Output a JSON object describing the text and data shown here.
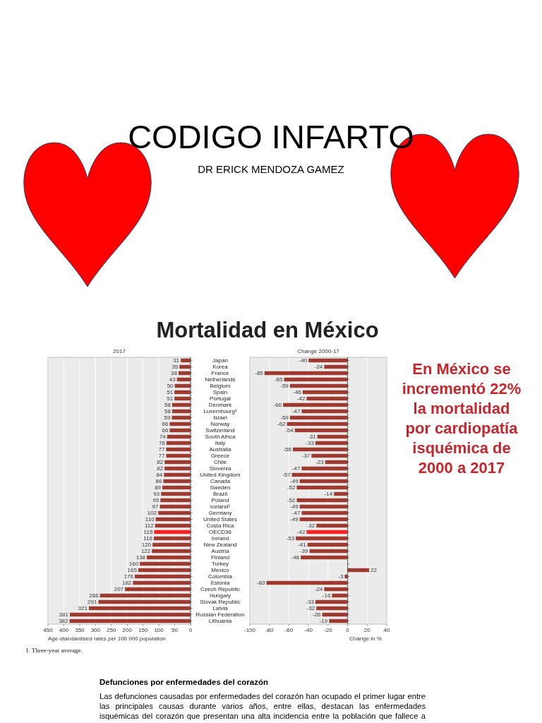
{
  "chart_data": [
    {
      "type": "other",
      "title": "CODIGO INFARTO",
      "subtitle": "DR ERICK MENDOZA GAMEZ"
    },
    {
      "type": "other",
      "title": "Mortalidad en México"
    },
    {
      "type": "bar",
      "orientation": "horizontal",
      "title": "2017",
      "xlabel": "Age-standardised rates per 100 000 population",
      "categories": [
        "Japan",
        "Korea",
        "France",
        "Netherlands",
        "Belgium",
        "Spain",
        "Portugal",
        "Denmark",
        "Luxembourg¹",
        "Israel",
        "Norway",
        "Switzerland",
        "South Africa",
        "Italy",
        "Australia",
        "Greece",
        "Chile",
        "Slovenia",
        "United Kingdom",
        "Canada",
        "Sweden",
        "Brazil",
        "Poland",
        "Iceland¹",
        "Germany",
        "United States",
        "Costa Rica",
        "OECD36",
        "Ireland",
        "New Zealand",
        "Austria",
        "Finland",
        "Turkey",
        "Mexico",
        "Colombia",
        "Estonia",
        "Czech Republic",
        "Hungary",
        "Slovak Republic",
        "Latvia",
        "Russian Federation",
        "Lithuania"
      ],
      "values": [
        31,
        35,
        38,
        43,
        50,
        51,
        51,
        58,
        58,
        59,
        66,
        66,
        74,
        76,
        77,
        77,
        82,
        82,
        84,
        86,
        89,
        93,
        95,
        97,
        102,
        110,
        112,
        115,
        116,
        120,
        122,
        138,
        160,
        165,
        176,
        182,
        207,
        286,
        291,
        321,
        381,
        382
      ],
      "colors": [
        "#9e3b30",
        "#9e3b30",
        "#9e3b30",
        "#9e3b30",
        "#9e3b30",
        "#9e3b30",
        "#9e3b30",
        "#9e3b30",
        "#9e3b30",
        "#9e3b30",
        "#9e3b30",
        "#9e3b30",
        "#9e3b30",
        "#9e3b30",
        "#9e3b30",
        "#9e3b30",
        "#9e3b30",
        "#9e3b30",
        "#9e3b30",
        "#9e3b30",
        "#9e3b30",
        "#9e3b30",
        "#9e3b30",
        "#9e3b30",
        "#9e3b30",
        "#9e3b30",
        "#9e3b30",
        "#ff2020",
        "#9e3b30",
        "#9e3b30",
        "#9e3b30",
        "#9e3b30",
        "#9e3b30",
        "#9e3b30",
        "#9e3b30",
        "#9e3b30",
        "#9e3b30",
        "#9e3b30",
        "#9e3b30",
        "#9e3b30",
        "#9e3b30",
        "#9e3b30"
      ],
      "xlim": [
        450,
        0
      ],
      "xticks": [
        450,
        400,
        350,
        300,
        250,
        200,
        150,
        100,
        50,
        0
      ],
      "grid": "x",
      "data_labels": true,
      "annotations": [
        "1. Three-year average."
      ]
    },
    {
      "type": "bar",
      "orientation": "horizontal",
      "title": "Change 2000-17",
      "xlabel": "Change in %",
      "categories": [
        "Japan",
        "Korea",
        "France",
        "Netherlands",
        "Belgium",
        "Spain",
        "Portugal",
        "Denmark",
        "Luxembourg¹",
        "Israel",
        "Norway",
        "Switzerland",
        "South Africa",
        "Italy",
        "Australia",
        "Greece",
        "Chile",
        "Slovenia",
        "United Kingdom",
        "Canada",
        "Sweden",
        "Brazil",
        "Poland",
        "Iceland¹",
        "Germany",
        "United States",
        "Costa Rica",
        "OECD36",
        "Ireland",
        "New Zealand",
        "Austria",
        "Finland",
        "Turkey",
        "Mexico",
        "Colombia",
        "Estonia",
        "Czech Republic",
        "Hungary",
        "Slovak Republic",
        "Latvia",
        "Russian Federation",
        "Lithuania"
      ],
      "values": [
        -40,
        -24,
        -85,
        -65,
        -59,
        -46,
        -42,
        -66,
        -47,
        -59,
        -62,
        -54,
        -31,
        -33,
        -56,
        -37,
        -23,
        -47,
        -57,
        -49,
        -52,
        -14,
        -52,
        -49,
        -47,
        -49,
        -32,
        -42,
        -53,
        -41,
        -39,
        -48,
        null,
        22,
        -3,
        -83,
        -24,
        -16,
        -33,
        -32,
        -26,
        -19
      ],
      "colors": [
        "#9e3b30",
        "#9e3b30",
        "#9e3b30",
        "#9e3b30",
        "#9e3b30",
        "#9e3b30",
        "#9e3b30",
        "#9e3b30",
        "#9e3b30",
        "#9e3b30",
        "#9e3b30",
        "#9e3b30",
        "#9e3b30",
        "#9e3b30",
        "#9e3b30",
        "#9e3b30",
        "#9e3b30",
        "#9e3b30",
        "#9e3b30",
        "#9e3b30",
        "#9e3b30",
        "#9e3b30",
        "#9e3b30",
        "#9e3b30",
        "#9e3b30",
        "#9e3b30",
        "#9e3b30",
        "#ff2020",
        "#9e3b30",
        "#9e3b30",
        "#9e3b30",
        "#9e3b30",
        null,
        "#9e3b30",
        "#9e3b30",
        "#9e3b30",
        "#9e3b30",
        "#9e3b30",
        "#9e3b30",
        "#9e3b30",
        "#9e3b30",
        "#9e3b30"
      ],
      "xlim": [
        -100,
        40
      ],
      "xticks": [
        -100,
        -80,
        -60,
        -40,
        -20,
        0,
        20,
        40
      ],
      "grid": "x",
      "data_labels": true,
      "tick_labels": "x"
    },
    {
      "type": "other",
      "annotations": [
        "En México se incrementó 22% la mortalidad por cardiopatía isquémica de 2000 a 2017"
      ]
    },
    {
      "type": "other",
      "title": "Defunciones por enfermedades del corazón",
      "annotations": [
        "Las defunciones causadas por enfermedades del corazón han ocupado el primer lugar entre las principales causas durante varios años, entre ellas, destacan las enfermedades isquémicas del corazón que presentan una alta incidencia entre la población que fallece a"
      ]
    }
  ]
}
